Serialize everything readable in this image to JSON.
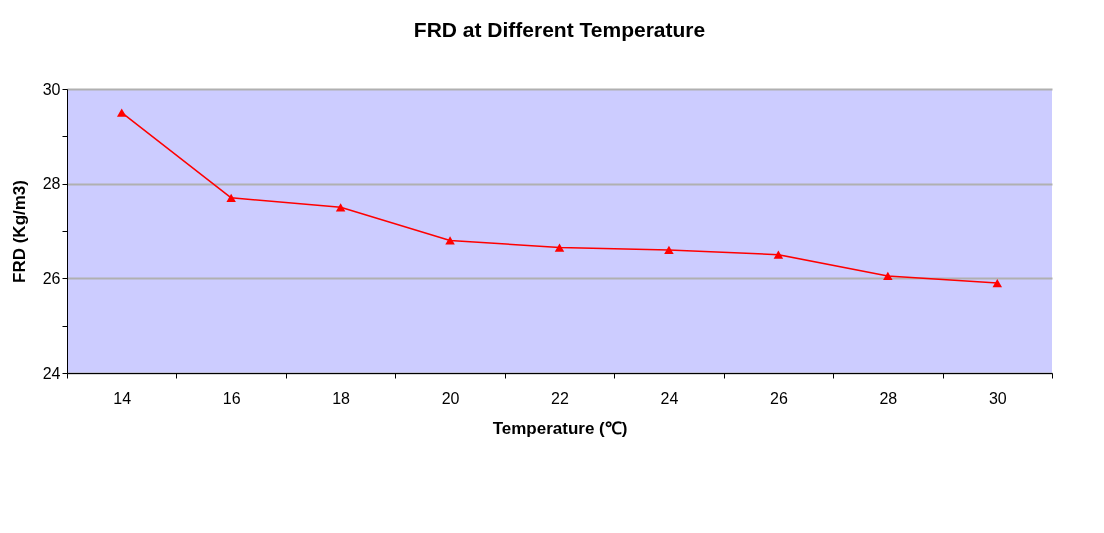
{
  "chart_data": {
    "type": "line",
    "title": "FRD at Different Temperature",
    "xlabel": "Temperature (℃)",
    "ylabel": "FRD (Kg/m3)",
    "categories": [
      "14",
      "16",
      "18",
      "20",
      "22",
      "24",
      "26",
      "28",
      "30"
    ],
    "series": [
      {
        "color": "#ff0000",
        "values": [
          29.5,
          27.7,
          27.5,
          26.8,
          26.65,
          26.6,
          26.5,
          26.05,
          25.9
        ]
      }
    ],
    "ylim": [
      24,
      30
    ],
    "yticks": [
      24,
      {
        "value": 25,
        "label": null
      },
      26,
      {
        "value": 27,
        "label": null
      },
      28,
      {
        "value": 29,
        "label": null
      },
      30
    ],
    "grid": "y",
    "legend": false,
    "marker": "triangle",
    "line_style": "solid"
  }
}
